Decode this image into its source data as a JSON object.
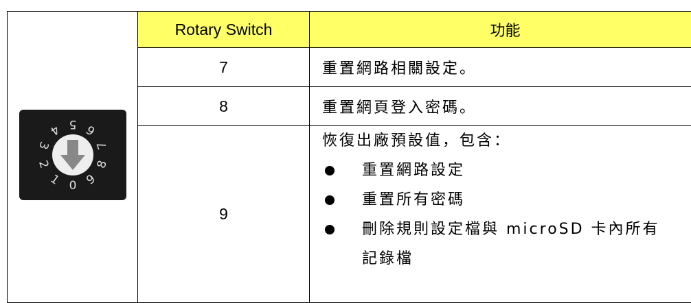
{
  "table": {
    "header": [
      "Rotary Switch",
      "功能"
    ],
    "rows": [
      {
        "switch": "7",
        "function": [
          "重置網路相關設定。"
        ]
      },
      {
        "switch": "8",
        "function": [
          "重置網頁登入密碼。"
        ]
      },
      {
        "switch": "9",
        "function": [
          "恢復出廠預設值，包含："
        ],
        "bullets": [
          "重置網路設定",
          "重置所有密碼",
          "刪除規則設定檔與 microSD 卡內所有記錄檔"
        ]
      }
    ]
  },
  "image": {
    "dial_labels": [
      "0",
      "1",
      "2",
      "3",
      "4",
      "5",
      "6",
      "7",
      "8",
      "9"
    ]
  }
}
